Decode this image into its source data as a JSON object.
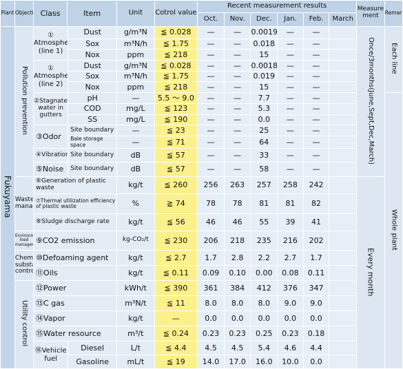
{
  "headers": {
    "plant": "Plant",
    "objective": "Objective",
    "class": "Class",
    "item": "Item",
    "unit": "Unit",
    "control": "Cotrol value",
    "recent": "Recent measurement results",
    "measure": "Measure ment",
    "remarks": "Remarks",
    "months": [
      "Oct.",
      "Nov.",
      "Dec.",
      "Jan.",
      "Feb.",
      "March"
    ]
  },
  "plant_name": "Fukuyama",
  "objectives": {
    "pollution": "Pollution prevention",
    "waste": "Waste management",
    "env": "Environmental load management",
    "chem": "Chemical substance control",
    "utility": "Utility control"
  },
  "measurement": {
    "pollution": "Once/3months(June,Sept,Dec,March)",
    "rest": "Every month"
  },
  "remarks": {
    "each_line": "Each line",
    "whole": "Whole plant"
  },
  "atm1": {
    "class": "① Atmosphere (line 1)",
    "items": [
      "Dust",
      "Sox",
      "Nox"
    ],
    "units": [
      "g/m³N",
      "m³N/h",
      "ppm"
    ],
    "ctrl": [
      "≦ 0.028",
      "≦ 1.75",
      "≦ 218"
    ],
    "vals": [
      [
        "—",
        "—",
        "0.0019",
        "—",
        "—",
        ""
      ],
      [
        "—",
        "—",
        "0.018",
        "—",
        "—",
        ""
      ],
      [
        "—",
        "—",
        "15",
        "—",
        "—",
        ""
      ]
    ]
  },
  "atm2": {
    "class": "① Atmosphere (line 2)",
    "items": [
      "Dust",
      "Sox",
      "Nox"
    ],
    "units": [
      "g/m³N",
      "m³N/h",
      "ppm"
    ],
    "ctrl": [
      "≦ 0.028",
      "≦ 1.75",
      "≦ 218"
    ],
    "vals": [
      [
        "—",
        "—",
        "0.0018",
        "—",
        "—",
        ""
      ],
      [
        "—",
        "—",
        "0.019",
        "—",
        "—",
        ""
      ],
      [
        "—",
        "—",
        "15",
        "—",
        "—",
        ""
      ]
    ]
  },
  "water": {
    "class": "②Stagnated water in gutters",
    "items": [
      "pH",
      "COD",
      "SS"
    ],
    "units": [
      "—",
      "mg/L",
      "mg/L"
    ],
    "ctrl": [
      "5.5 ～ 9.0",
      "≦ 123",
      "≦ 190"
    ],
    "vals": [
      [
        "—",
        "—",
        "7.7",
        "—",
        "—",
        ""
      ],
      [
        "—",
        "—",
        "5.3",
        "—",
        "—",
        ""
      ],
      [
        "—",
        "—",
        "0.0",
        "—",
        "—",
        ""
      ]
    ]
  },
  "odor": {
    "class": "③Odor",
    "items": [
      "Site boundary",
      "Bale storage space"
    ],
    "units": [
      "—",
      "—"
    ],
    "ctrl": [
      "≦ 23",
      "≦ 71"
    ],
    "vals": [
      [
        "—",
        "—",
        "25",
        "—",
        "—",
        ""
      ],
      [
        "—",
        "—",
        "64",
        "—",
        "—",
        ""
      ]
    ]
  },
  "vibration": {
    "class": "④Vibration",
    "item": "Site boundary",
    "unit": "dB",
    "ctrl": "≦ 57",
    "vals": [
      "—",
      "—",
      "33",
      "—",
      "—",
      ""
    ]
  },
  "noise": {
    "class": "⑤Noise",
    "item": "Site boundary",
    "unit": "dB",
    "ctrl": "≦ 57",
    "vals": [
      "—",
      "—",
      "58",
      "—",
      "—",
      ""
    ]
  },
  "gen": {
    "label": "⑥Generation of plastic waste",
    "unit": "kg/t",
    "ctrl": "≦ 260",
    "vals": [
      "256",
      "263",
      "257",
      "258",
      "242",
      ""
    ]
  },
  "therm": {
    "label_num": "⑦",
    "label": "Thermal utilization efficiency of plastic waste",
    "unit": "%",
    "ctrl": "≧ 74",
    "vals": [
      "78",
      "78",
      "81",
      "81",
      "82",
      ""
    ]
  },
  "sludge": {
    "label": "⑧Sludge discharge rate",
    "unit": "kg/t",
    "ctrl": "≦ 56",
    "vals": [
      "46",
      "46",
      "55",
      "39",
      "41",
      ""
    ]
  },
  "co2": {
    "label": "⑨CO2 emission",
    "unit": "kg-CO₂/t",
    "ctrl": "≦ 230",
    "vals": [
      "206",
      "218",
      "235",
      "216",
      "202",
      ""
    ]
  },
  "defoam": {
    "label": "⑩Defoaming agent",
    "unit": "kg/t",
    "ctrl": "≦ 2.7",
    "vals": [
      "1.7",
      "2.8",
      "2.2",
      "2.7",
      "1.7",
      ""
    ]
  },
  "oils": {
    "label": "⑪Oils",
    "unit": "kg/t",
    "ctrl": "≦ 0.11",
    "vals": [
      "0.09",
      "0.10",
      "0.00",
      "0.08",
      "0.11",
      ""
    ]
  },
  "power": {
    "label": "⑫Power",
    "unit": "kWh/t",
    "ctrl": "≦ 390",
    "vals": [
      "361",
      "384",
      "412",
      "376",
      "347",
      ""
    ]
  },
  "cgas": {
    "label": "⑬C gas",
    "unit": "m³N/t",
    "ctrl": "≦ 11",
    "vals": [
      "8.0",
      "8.0",
      "8.0",
      "9.0",
      "9.0",
      ""
    ]
  },
  "vapor": {
    "label": "⑭Vapor",
    "unit": "kg/t",
    "ctrl": "—",
    "vals": [
      "0.0",
      "0.0",
      "0.0",
      "0.0",
      "0.0",
      ""
    ]
  },
  "waterres": {
    "label": "⑮Water resource",
    "unit": "m³/t",
    "ctrl": "≦ 0.24",
    "vals": [
      "0.23",
      "0.23",
      "0.25",
      "0.23",
      "0.18",
      ""
    ]
  },
  "vehicle": {
    "label": "⑯Vehicle fuel",
    "diesel": {
      "item": "Diesel",
      "unit": "L/t",
      "ctrl": "≦ 4.4",
      "vals": [
        "4.5",
        "4.5",
        "5.4",
        "4.6",
        "4.4",
        ""
      ]
    },
    "gasoline": {
      "item": "Gasoline",
      "unit": "mL/t",
      "ctrl": "≦ 19",
      "vals": [
        "14.0",
        "17.0",
        "16.0",
        "10.0",
        "0.0",
        ""
      ]
    }
  }
}
